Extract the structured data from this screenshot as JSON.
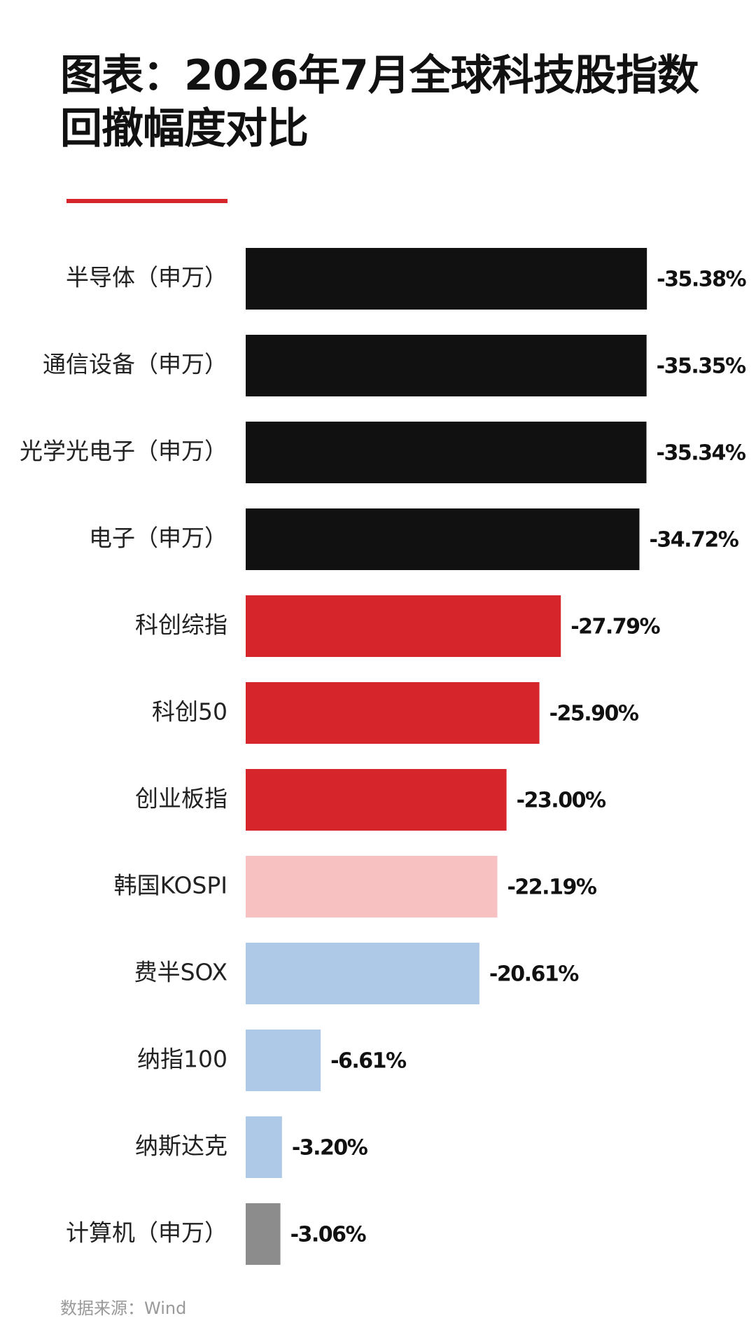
{
  "chart_data": {
    "type": "bar",
    "orientation": "horizontal",
    "title": "图表：2026年7月全球科技股指数回撤幅度对比",
    "source": "数据来源：Wind",
    "categories": [
      "半导体（申万）",
      "通信设备（申万）",
      "光学光电子（申万）",
      "电子（申万）",
      "科创综指",
      "科创50",
      "创业板指",
      "韩国KOSPI",
      "费半SOX",
      "纳指100",
      "纳斯达克",
      "计算机（申万）"
    ],
    "values": [
      -35.38,
      -35.35,
      -35.34,
      -34.72,
      -27.79,
      -25.9,
      -23.0,
      -22.19,
      -20.61,
      -6.61,
      -3.2,
      -3.06
    ],
    "value_labels": [
      "-35.38%",
      "-35.35%",
      "-35.34%",
      "-34.72%",
      "-27.79%",
      "-25.90%",
      "-23.00%",
      "-22.19%",
      "-20.61%",
      "-6.61%",
      "-3.20%",
      "-3.06%"
    ],
    "colors": [
      "#111111",
      "#111111",
      "#111111",
      "#111111",
      "#d7262b",
      "#d7262b",
      "#d7262b",
      "#f7c1c1",
      "#aec8e8",
      "#aec8e8",
      "#aec8e8",
      "#8c8c8c"
    ],
    "xlim": [
      0,
      -40
    ]
  }
}
